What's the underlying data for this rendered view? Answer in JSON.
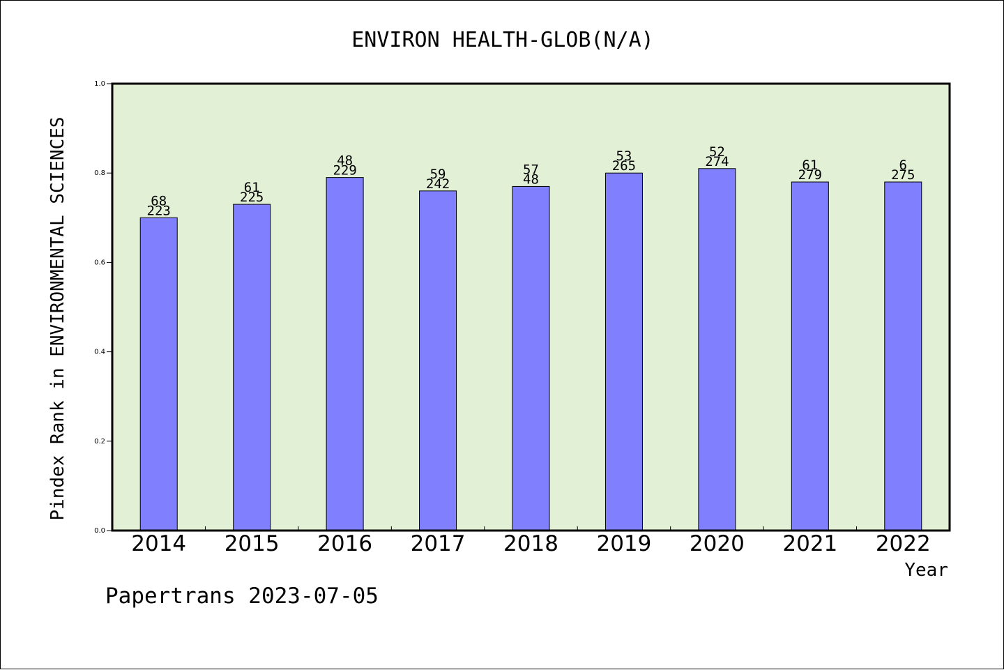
{
  "chart_data": {
    "type": "bar",
    "title": "ENVIRON HEALTH-GLOB(N/A)",
    "xlabel": "Year",
    "ylabel": "Pindex Rank in ENVIRONMENTAL SCIENCES",
    "categories": [
      "2014",
      "2015",
      "2016",
      "2017",
      "2018",
      "2019",
      "2020",
      "2021",
      "2022"
    ],
    "values": [
      0.7,
      0.73,
      0.79,
      0.76,
      0.77,
      0.8,
      0.81,
      0.78,
      0.78
    ],
    "bar_labels_top": [
      "68",
      "61",
      "48",
      "59",
      "57",
      "53",
      "52",
      "61",
      "6"
    ],
    "bar_labels_bottom": [
      "223",
      "225",
      "229",
      "242",
      "48",
      "265",
      "274",
      "279",
      "275"
    ],
    "ylim": [
      0,
      1.0
    ],
    "yticks": [
      "0.0",
      "0.2",
      "0.4",
      "0.6",
      "0.8",
      "1.0"
    ],
    "grid": false,
    "colors": {
      "bar": "#8080ff",
      "plot_background": "#e2f0d6",
      "axis": "#000000"
    }
  },
  "footer": {
    "credit": "Papertrans 2023-07-05"
  }
}
